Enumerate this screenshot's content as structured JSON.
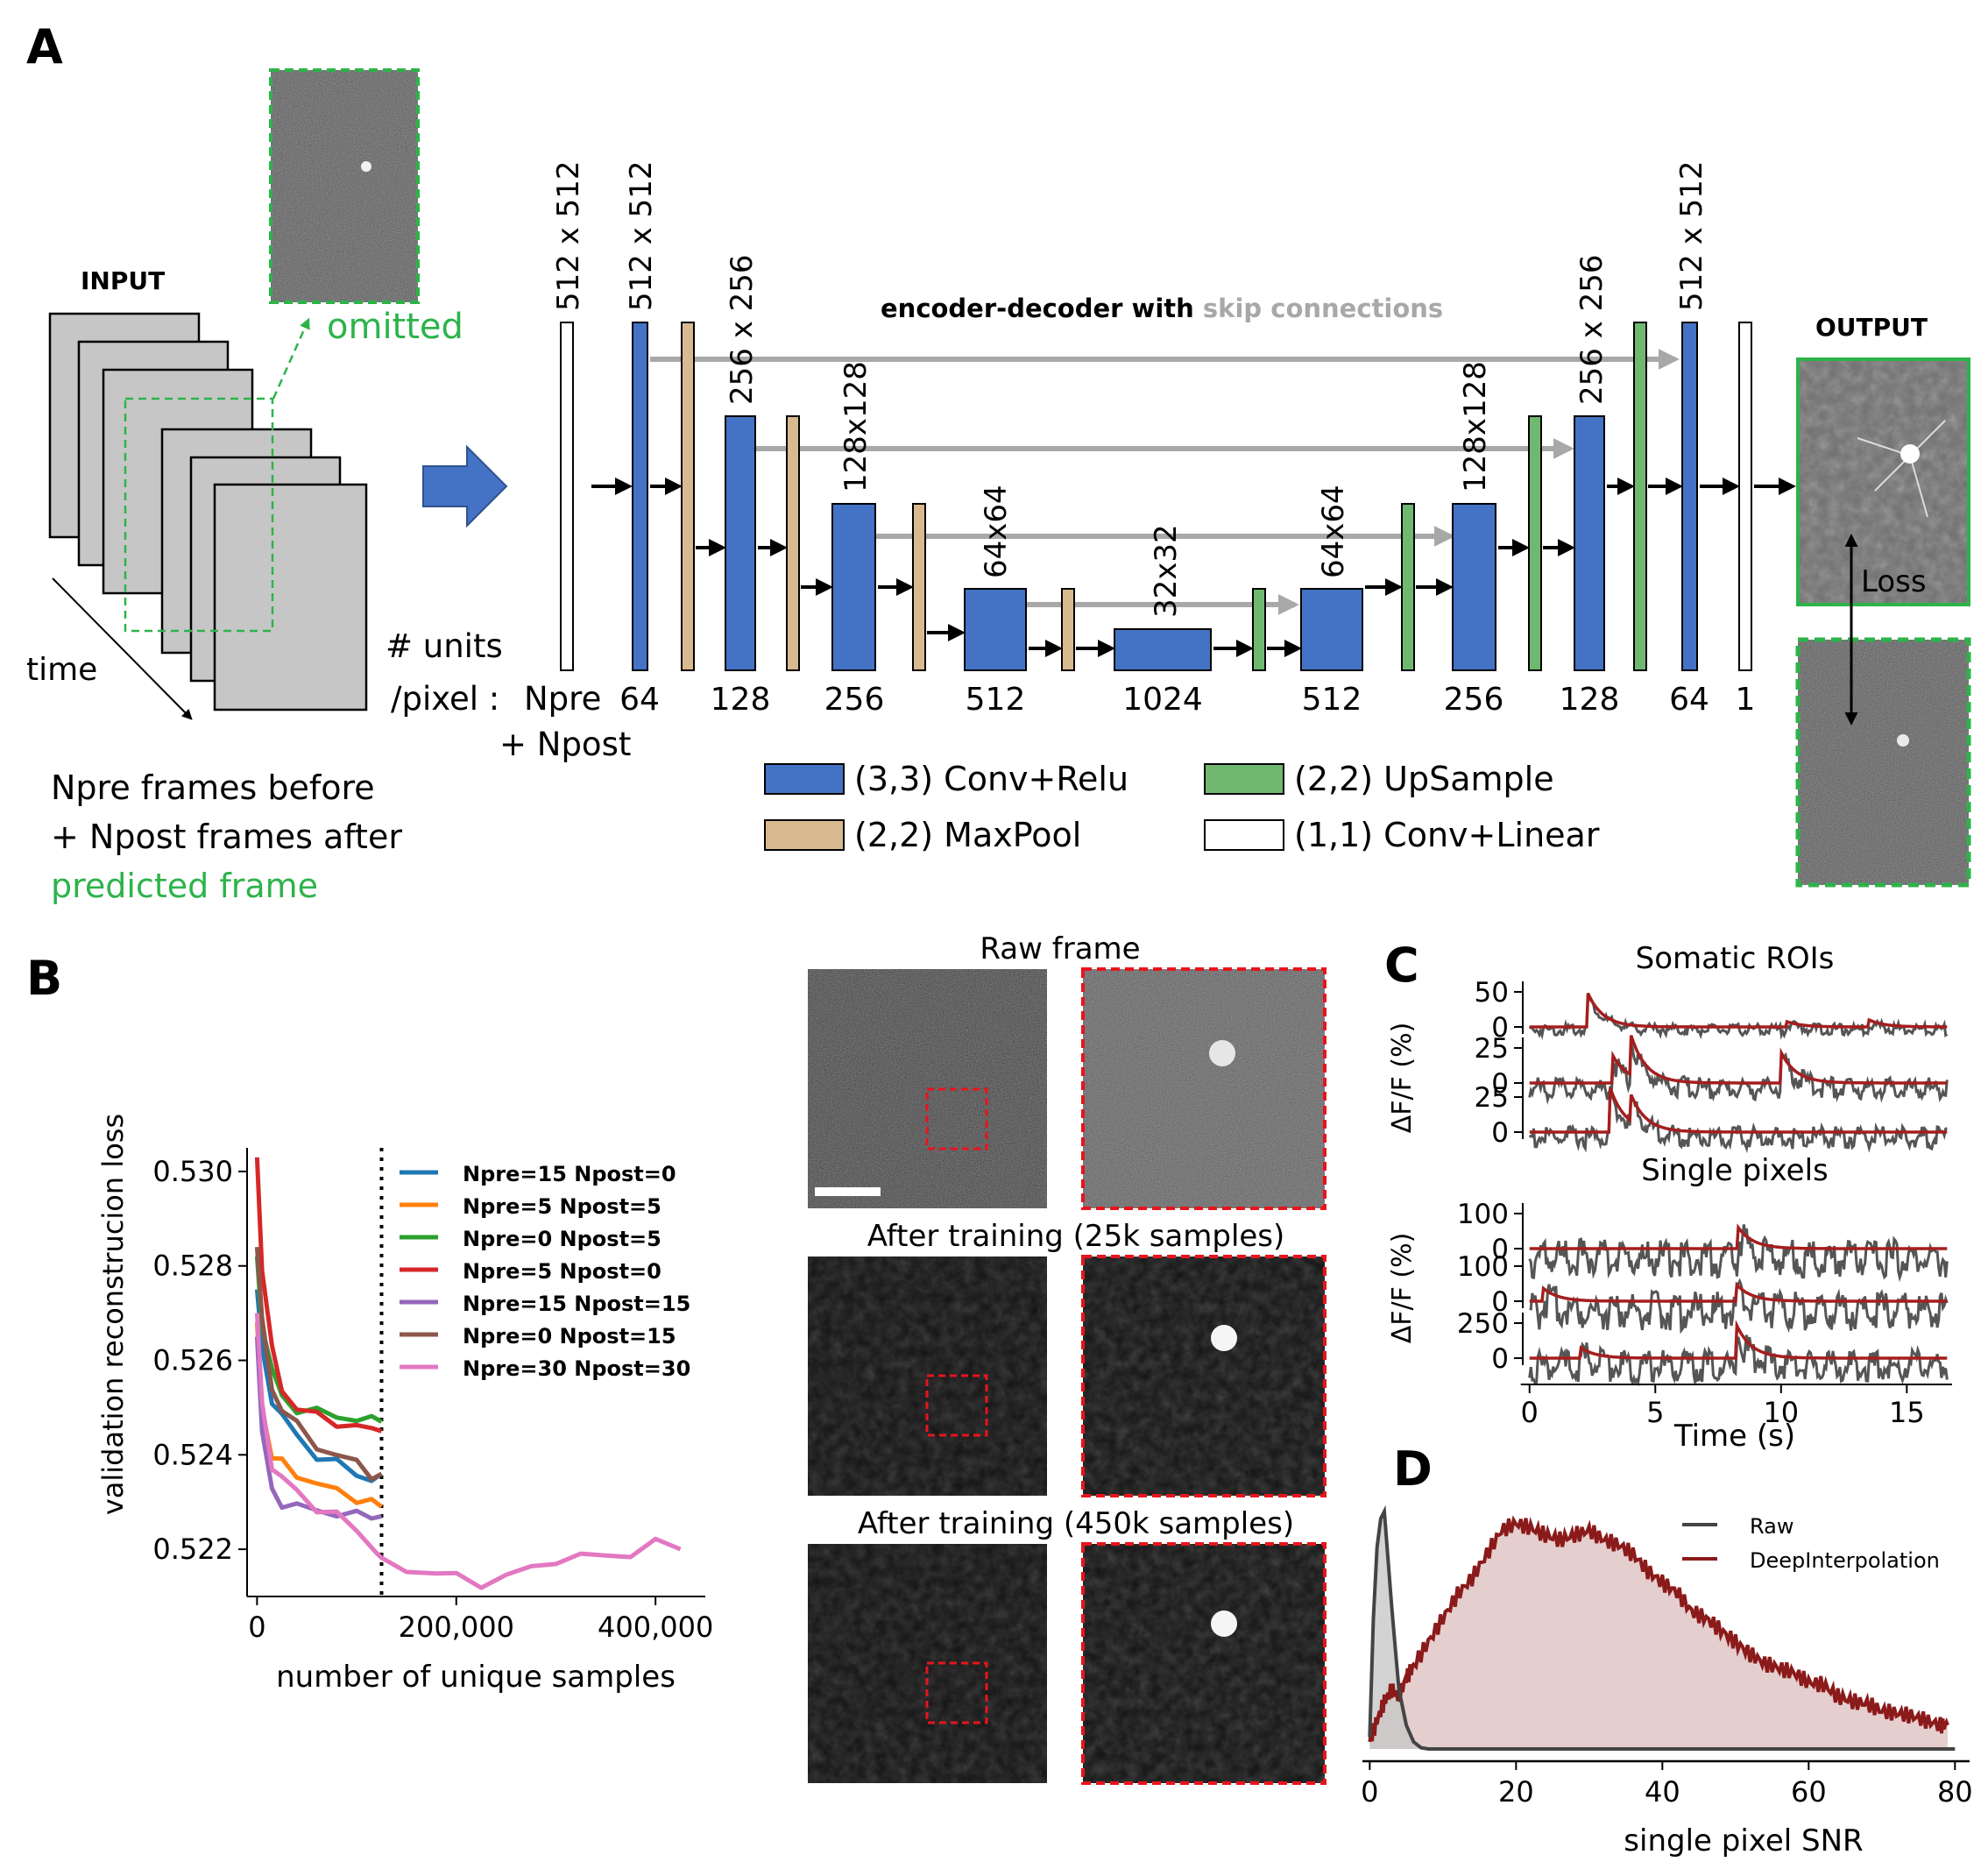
{
  "panel_labels": {
    "a": "A",
    "b": "B",
    "c": "C",
    "d": "D"
  },
  "panel_a": {
    "input_label": "INPUT",
    "omitted_label": "omitted",
    "time_label": "time",
    "units_label_1": "# units",
    "units_label_2": "/pixel :",
    "npre_label": "Npre",
    "npost_label": "+ Npost",
    "caption_line1": "Npre frames before",
    "caption_line2": "+  Npost frames after",
    "caption_line3": "predicted frame",
    "title_bold": "encoder-decoder with ",
    "title_gray": "skip connections",
    "output_label": "OUTPUT",
    "loss_label": "Loss",
    "size_labels": [
      "512 x 512",
      "512 x 512",
      "256 x 256",
      "128x128",
      "64x64",
      "32x32",
      "64x64",
      "128x128",
      "256 x 256",
      "512 x 512"
    ],
    "unit_labels": [
      "64",
      "128",
      "256",
      "512",
      "1024",
      "512",
      "256",
      "128",
      "64",
      "1"
    ],
    "legend": {
      "conv_relu": "(3,3) Conv+Relu",
      "maxpool": "(2,2) MaxPool",
      "upsample": "(2,2) UpSample",
      "conv_linear": "(1,1) Conv+Linear"
    },
    "colors": {
      "conv": "#4472c4",
      "pool": "#d9b98f",
      "up": "#70b870",
      "linear": "#ffffff",
      "skip": "#a8a8a8",
      "green": "#2db34a"
    }
  },
  "panel_b": {
    "ylabel": "validation reconstrucion loss",
    "xlabel": "number of unique samples",
    "yticks": [
      "0.522",
      "0.524",
      "0.526",
      "0.528",
      "0.530"
    ],
    "xticks": [
      "0",
      "200,000",
      "400,000"
    ],
    "images": {
      "raw_title": "Raw frame",
      "trained_25k_title": "After training (25k samples)",
      "trained_450k_title": "After training (450k samples)"
    }
  },
  "panel_c": {
    "somatic_title": "Somatic ROIs",
    "pixels_title": "Single pixels",
    "ylabel": "ΔF/F (%)",
    "xlabel": "Time (s)",
    "xticks": [
      "0",
      "5",
      "10",
      "15"
    ],
    "somatic_ticks": [
      [
        "50",
        "0"
      ],
      [
        "25",
        "0"
      ],
      [
        "25",
        "0"
      ]
    ],
    "pixel_ticks": [
      [
        "100",
        "0"
      ],
      [
        "100",
        "0"
      ],
      [
        "250",
        "0"
      ]
    ]
  },
  "panel_d": {
    "xlabel": "single pixel SNR",
    "xticks": [
      "0",
      "20",
      "40",
      "60",
      "80"
    ],
    "legend_raw": "Raw",
    "legend_di": "DeepInterpolation"
  },
  "chart_data": [
    {
      "type": "line",
      "ylabel": "validation reconstrucion loss",
      "xlabel": "number of unique samples",
      "xlim": [
        -10000,
        450000
      ],
      "ylim": [
        0.521,
        0.5305
      ],
      "grid": false,
      "legend_placement": "top-right",
      "cutoff_x": 125000,
      "series": [
        {
          "name": "Npre=15 Npost=0",
          "color": "#1f77b4",
          "x": [
            0,
            5000,
            15000,
            25000,
            40000,
            60000,
            80000,
            100000,
            115000,
            125000
          ],
          "y": [
            0.5275,
            0.5262,
            0.5252,
            0.5248,
            0.5244,
            0.524,
            0.5238,
            0.5236,
            0.5235,
            0.5236
          ]
        },
        {
          "name": "Npre=5 Npost=5",
          "color": "#ff7f0e",
          "x": [
            0,
            5000,
            15000,
            25000,
            40000,
            60000,
            80000,
            100000,
            115000,
            125000
          ],
          "y": [
            0.5268,
            0.525,
            0.524,
            0.5238,
            0.5236,
            0.5234,
            0.5232,
            0.5231,
            0.523,
            0.5229
          ]
        },
        {
          "name": "Npre=0 Npost=5",
          "color": "#2ca02c",
          "x": [
            0,
            5000,
            15000,
            25000,
            40000,
            60000,
            80000,
            100000,
            115000,
            125000
          ],
          "y": [
            0.5282,
            0.5268,
            0.5258,
            0.5252,
            0.525,
            0.5249,
            0.5248,
            0.5248,
            0.5247,
            0.5247
          ]
        },
        {
          "name": "Npre=5 Npost=0",
          "color": "#d62728",
          "x": [
            0,
            5000,
            15000,
            25000,
            40000,
            60000,
            80000,
            100000,
            115000,
            125000
          ],
          "y": [
            0.5303,
            0.528,
            0.5262,
            0.5254,
            0.525,
            0.5248,
            0.5247,
            0.5246,
            0.5245,
            0.5245
          ]
        },
        {
          "name": "Npre=15 Npost=15",
          "color": "#9467bd",
          "x": [
            0,
            5000,
            15000,
            25000,
            40000,
            60000,
            80000,
            100000,
            115000,
            125000
          ],
          "y": [
            0.5265,
            0.5245,
            0.5232,
            0.523,
            0.5229,
            0.5228,
            0.5228,
            0.5227,
            0.5227,
            0.5227
          ]
        },
        {
          "name": "Npre=0 Npost=15",
          "color": "#8c564b",
          "x": [
            0,
            5000,
            15000,
            25000,
            40000,
            60000,
            80000,
            100000,
            115000,
            125000
          ],
          "y": [
            0.5284,
            0.5268,
            0.5254,
            0.525,
            0.5246,
            0.5242,
            0.524,
            0.5238,
            0.5236,
            0.5236
          ]
        },
        {
          "name": "Npre=30 Npost=30",
          "color": "#e377c2",
          "x": [
            0,
            5000,
            15000,
            25000,
            40000,
            60000,
            80000,
            100000,
            120000,
            125000,
            150000,
            180000,
            200000,
            225000,
            250000,
            275000,
            300000,
            325000,
            350000,
            375000,
            400000,
            425000
          ],
          "y": [
            0.527,
            0.525,
            0.5238,
            0.5235,
            0.5232,
            0.5229,
            0.5227,
            0.5224,
            0.522,
            0.5217,
            0.5216,
            0.5215,
            0.5214,
            0.5213,
            0.5214,
            0.5216,
            0.5218,
            0.5218,
            0.5219,
            0.5219,
            0.5221,
            0.522
          ]
        }
      ]
    },
    {
      "type": "line",
      "title": "Somatic ROIs",
      "xlabel": "Time (s)",
      "ylabel": "ΔF/F (%)",
      "xlim": [
        -0.2,
        16.8
      ],
      "series": [
        {
          "name": "trace-1",
          "peaks": [
            [
              2.3,
              50
            ],
            [
              10.2,
              8
            ],
            [
              13.5,
              10
            ]
          ]
        },
        {
          "name": "trace-2",
          "peaks": [
            [
              3.3,
              20
            ],
            [
              4.0,
              30
            ],
            [
              10.0,
              22
            ]
          ]
        },
        {
          "name": "trace-3",
          "peaks": [
            [
              3.2,
              32
            ],
            [
              4.0,
              20
            ]
          ]
        }
      ]
    },
    {
      "type": "line",
      "title": "Single pixels",
      "xlabel": "Time (s)",
      "ylabel": "ΔF/F (%)",
      "xlim": [
        -0.2,
        16.8
      ],
      "series": [
        {
          "name": "pixel-1",
          "peaks": [
            [
              8.3,
              60
            ]
          ]
        },
        {
          "name": "pixel-2",
          "peaks": [
            [
              0.5,
              40
            ],
            [
              8.2,
              50
            ]
          ]
        },
        {
          "name": "pixel-3",
          "peaks": [
            [
              2.0,
              80
            ],
            [
              8.2,
              250
            ]
          ]
        }
      ]
    },
    {
      "type": "area",
      "xlabel": "single pixel SNR",
      "xlim": [
        -1,
        82
      ],
      "series": [
        {
          "name": "Raw",
          "color": "#444444",
          "x": [
            0,
            0.5,
            1,
            1.5,
            2,
            2.5,
            3,
            3.5,
            4,
            5,
            6,
            7,
            8,
            80
          ],
          "y": [
            0.05,
            0.55,
            0.85,
            0.97,
            1.0,
            0.8,
            0.6,
            0.42,
            0.25,
            0.1,
            0.03,
            0.005,
            0.0,
            0.0
          ]
        },
        {
          "name": "DeepInterpolation",
          "color": "#8b1a1a",
          "x": [
            0,
            1,
            2,
            3,
            4,
            5,
            6,
            8,
            10,
            12,
            14,
            16,
            18,
            20,
            22,
            24,
            26,
            28,
            30,
            32,
            34,
            36,
            38,
            40,
            42,
            44,
            46,
            48,
            50,
            52,
            54,
            56,
            58,
            60,
            62,
            64,
            66,
            68,
            70,
            72,
            74,
            76,
            78,
            79
          ],
          "y": [
            0.03,
            0.12,
            0.2,
            0.25,
            0.22,
            0.3,
            0.35,
            0.45,
            0.55,
            0.65,
            0.72,
            0.82,
            0.92,
            0.95,
            0.93,
            0.9,
            0.88,
            0.9,
            0.92,
            0.88,
            0.86,
            0.82,
            0.75,
            0.7,
            0.66,
            0.58,
            0.55,
            0.5,
            0.45,
            0.4,
            0.36,
            0.34,
            0.32,
            0.28,
            0.27,
            0.22,
            0.2,
            0.19,
            0.16,
            0.15,
            0.14,
            0.12,
            0.1,
            0.1
          ]
        }
      ]
    }
  ]
}
